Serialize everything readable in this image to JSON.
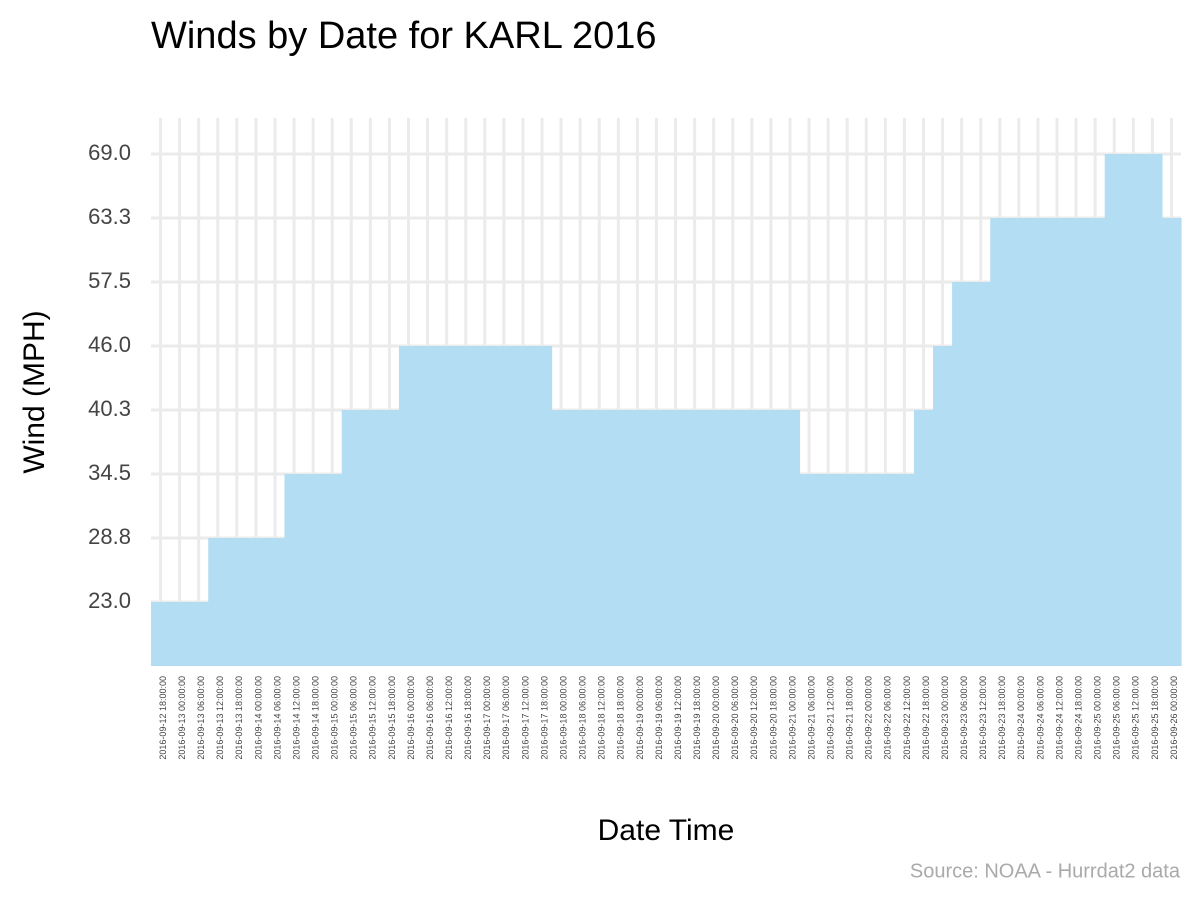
{
  "chart_data": {
    "type": "bar",
    "title": "Winds by Date for KARL 2016",
    "x_label": "Date Time",
    "y_label": "Wind (MPH)",
    "caption": "Source: NOAA - Hurrdat2 data",
    "color": "#b3ddf2",
    "grid": true,
    "yscale": "ordinal",
    "categories": [
      "2016-09-12 18:00:00",
      "2016-09-13 00:00:00",
      "2016-09-13 06:00:00",
      "2016-09-13 12:00:00",
      "2016-09-13 18:00:00",
      "2016-09-14 00:00:00",
      "2016-09-14 06:00:00",
      "2016-09-14 12:00:00",
      "2016-09-14 18:00:00",
      "2016-09-15 00:00:00",
      "2016-09-15 06:00:00",
      "2016-09-15 12:00:00",
      "2016-09-15 18:00:00",
      "2016-09-16 00:00:00",
      "2016-09-16 06:00:00",
      "2016-09-16 12:00:00",
      "2016-09-16 18:00:00",
      "2016-09-17 00:00:00",
      "2016-09-17 06:00:00",
      "2016-09-17 12:00:00",
      "2016-09-17 18:00:00",
      "2016-09-18 00:00:00",
      "2016-09-18 06:00:00",
      "2016-09-18 12:00:00",
      "2016-09-18 18:00:00",
      "2016-09-19 00:00:00",
      "2016-09-19 06:00:00",
      "2016-09-19 12:00:00",
      "2016-09-19 18:00:00",
      "2016-09-20 00:00:00",
      "2016-09-20 06:00:00",
      "2016-09-20 12:00:00",
      "2016-09-20 18:00:00",
      "2016-09-21 00:00:00",
      "2016-09-21 06:00:00",
      "2016-09-21 12:00:00",
      "2016-09-21 18:00:00",
      "2016-09-22 00:00:00",
      "2016-09-22 06:00:00",
      "2016-09-22 12:00:00",
      "2016-09-22 18:00:00",
      "2016-09-23 00:00:00",
      "2016-09-23 06:00:00",
      "2016-09-23 12:00:00",
      "2016-09-23 18:00:00",
      "2016-09-24 00:00:00",
      "2016-09-24 06:00:00",
      "2016-09-24 12:00:00",
      "2016-09-24 18:00:00",
      "2016-09-25 00:00:00",
      "2016-09-25 06:00:00",
      "2016-09-25 12:00:00",
      "2016-09-25 18:00:00",
      "2016-09-26 00:00:00"
    ],
    "values": [
      23,
      23,
      23,
      28.8,
      28.8,
      28.8,
      28.8,
      34.5,
      34.5,
      34.5,
      40.3,
      40.3,
      40.3,
      46,
      46,
      46,
      46,
      46,
      46,
      46,
      46,
      40.3,
      40.3,
      40.3,
      40.3,
      40.3,
      40.3,
      40.3,
      40.3,
      40.3,
      40.3,
      40.3,
      40.3,
      40.3,
      34.5,
      34.5,
      34.5,
      34.5,
      34.5,
      34.5,
      40.3,
      46,
      57.5,
      57.5,
      63.3,
      63.3,
      63.3,
      63.3,
      63.3,
      63.3,
      69,
      69,
      69,
      63.3
    ],
    "yticks": [
      {
        "value": 23,
        "label": "23.0"
      },
      28.8,
      34.5,
      40.3,
      {
        "value": 46,
        "label": "46.0"
      },
      57.5,
      63.3,
      {
        "value": 69,
        "label": "69.0"
      }
    ]
  }
}
